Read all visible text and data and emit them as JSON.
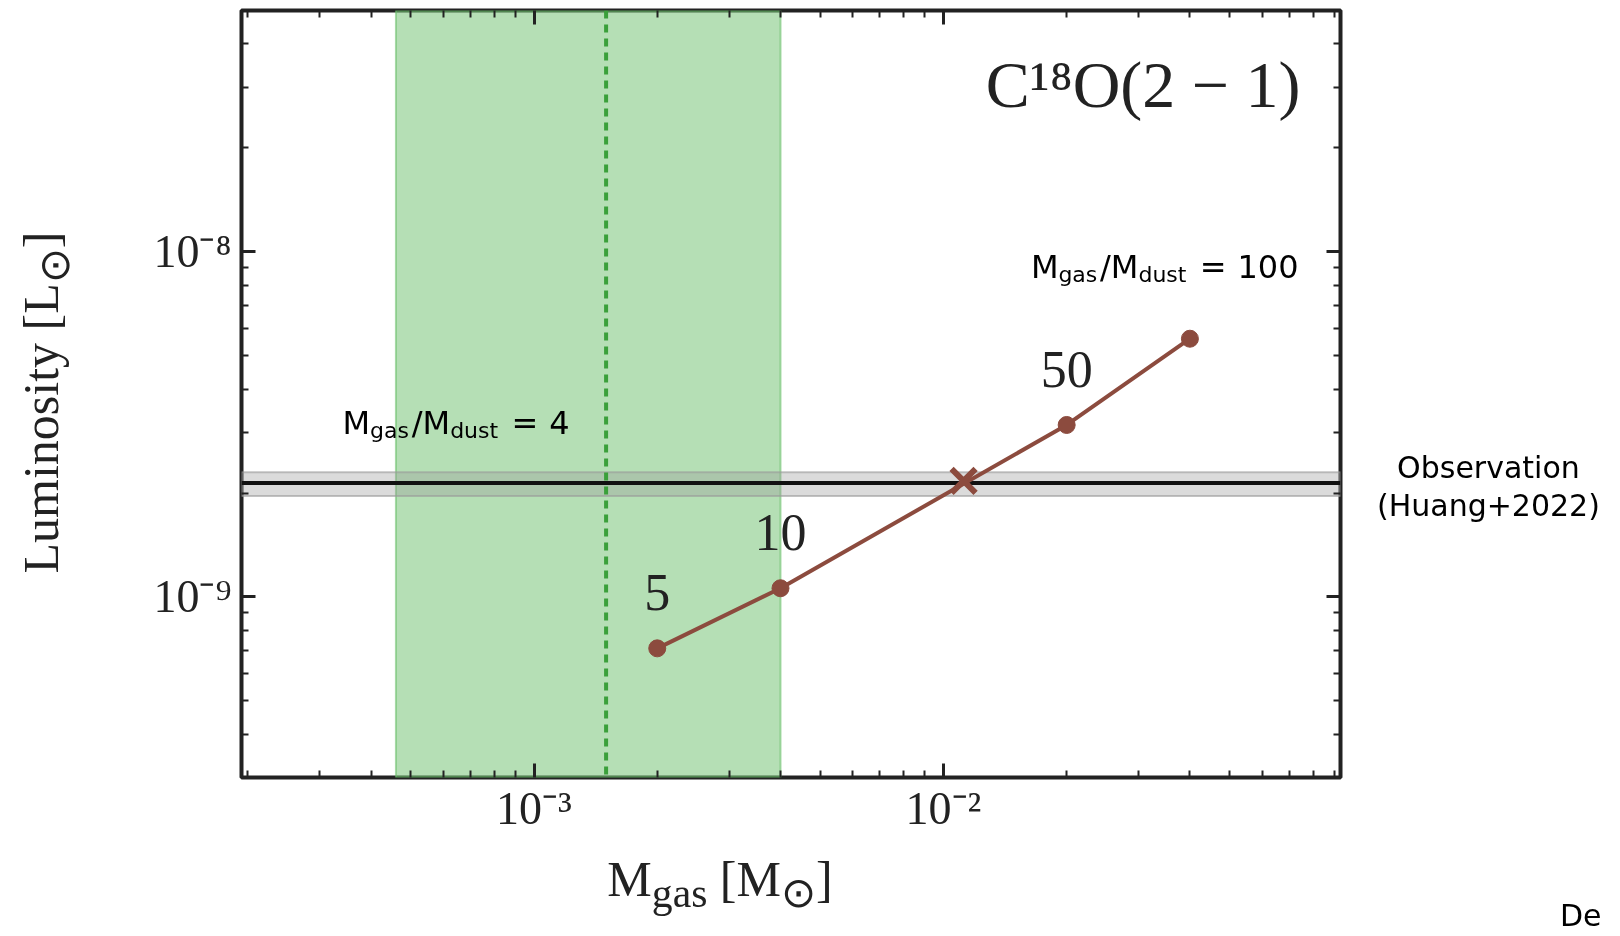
{
  "chart_data": {
    "type": "line",
    "title": "C¹⁸O(2 − 1)",
    "xlabel": "M$_{gas}$ [M$_{⊙}$]",
    "ylabel": "Luminosity [L$_{⊙}$]",
    "log": "xy",
    "xlim": [
      0.000193,
      0.0933
    ],
    "ylim": [
      3e-10,
      5e-08
    ],
    "xticks": [
      {
        "value": 0.0002,
        "label": null
      },
      {
        "value": 0.0003,
        "label": null
      },
      {
        "value": 0.0004,
        "label": null
      },
      {
        "value": 0.0005,
        "label": null
      },
      {
        "value": 0.0006,
        "label": null
      },
      {
        "value": 0.0007,
        "label": null
      },
      {
        "value": 0.0008,
        "label": null
      },
      {
        "value": 0.0009,
        "label": null
      },
      {
        "value": 0.001,
        "label": "10⁻³"
      },
      {
        "value": 0.002,
        "label": null
      },
      {
        "value": 0.003,
        "label": null
      },
      {
        "value": 0.004,
        "label": null
      },
      {
        "value": 0.005,
        "label": null
      },
      {
        "value": 0.006,
        "label": null
      },
      {
        "value": 0.007,
        "label": null
      },
      {
        "value": 0.008,
        "label": null
      },
      {
        "value": 0.009,
        "label": null
      },
      {
        "value": 0.01,
        "label": "10⁻²"
      },
      {
        "value": 0.02,
        "label": null
      },
      {
        "value": 0.03,
        "label": null
      },
      {
        "value": 0.04,
        "label": null
      },
      {
        "value": 0.05,
        "label": null
      },
      {
        "value": 0.06,
        "label": null
      },
      {
        "value": 0.07,
        "label": null
      },
      {
        "value": 0.08,
        "label": null
      },
      {
        "value": 0.09,
        "label": null
      }
    ],
    "yticks": [
      {
        "value": 4e-10,
        "label": null
      },
      {
        "value": 5e-10,
        "label": null
      },
      {
        "value": 6e-10,
        "label": null
      },
      {
        "value": 7e-10,
        "label": null
      },
      {
        "value": 8e-10,
        "label": null
      },
      {
        "value": 9e-10,
        "label": null
      },
      {
        "value": 1e-09,
        "label": "10⁻⁹"
      },
      {
        "value": 2e-09,
        "label": null
      },
      {
        "value": 3e-09,
        "label": null
      },
      {
        "value": 4e-09,
        "label": null
      },
      {
        "value": 5e-09,
        "label": null
      },
      {
        "value": 6e-09,
        "label": null
      },
      {
        "value": 7e-09,
        "label": null
      },
      {
        "value": 8e-09,
        "label": null
      },
      {
        "value": 9e-09,
        "label": null
      },
      {
        "value": 1e-08,
        "label": "10⁻⁸"
      },
      {
        "value": 2e-08,
        "label": null
      },
      {
        "value": 3e-08,
        "label": null
      },
      {
        "value": 4e-08,
        "label": null
      }
    ],
    "grid": false,
    "series": [
      {
        "marker": "circle",
        "color": "#8c4b3e",
        "x": [
          0.002,
          0.004,
          0.02,
          0.04
        ],
        "values": [
          7.1e-10,
          1.06e-09,
          3.15e-09,
          5.6e-09
        ]
      },
      {
        "type": "scatter",
        "marker": "cross",
        "color": "#8c4b3e",
        "x": [
          0.0112
        ],
        "values": [
          2.17e-09
        ]
      }
    ],
    "ref_lines": [
      {
        "axis": "x",
        "value": 0.0015,
        "color": "#3aa03a",
        "line_style": "dashed"
      },
      {
        "axis": "y",
        "value": 2.14e-09,
        "color": "#111111",
        "line_style": "solid",
        "label": "Observation\n(Huang+2022)"
      }
    ],
    "bands": [
      {
        "axis": "x",
        "from": 0.00046,
        "to": 0.004,
        "color": "#6cc06c"
      },
      {
        "axis": "y",
        "from": 1.96e-09,
        "to": 2.3e-09,
        "color": "#999999"
      }
    ],
    "annotations": [
      {
        "text": "5",
        "x": 0.002,
        "y": 7.1e-10
      },
      {
        "text": "10",
        "x": 0.004,
        "y": 1.06e-09
      },
      {
        "text": "50",
        "x": 0.02,
        "y": 3.15e-09
      },
      {
        "text": "M$_{gas}$/M$_{dust}$ = 100",
        "x": 0.04,
        "y": 5.6e-09
      },
      {
        "text": "M$_{gas}$/M$_{dust}$ = 4",
        "x": 0.0015,
        "y": 2.14e-09
      },
      "De"
    ]
  }
}
